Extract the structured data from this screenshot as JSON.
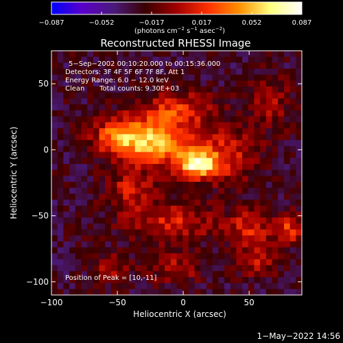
{
  "chart_data": {
    "type": "heatmap",
    "title": "Reconstructed RHESSI Image",
    "xlabel": "Heliocentric X (arcsec)",
    "ylabel": "Heliocentric Y (arcsec)",
    "xlim": [
      -100,
      90
    ],
    "ylim": [
      -110,
      75
    ],
    "xticks": [
      -100,
      -50,
      0,
      50
    ],
    "yticks": [
      -100,
      -50,
      0,
      50
    ],
    "colorbar": {
      "label_prefix": "(photons cm",
      "label_exp1": "−2",
      "label_mid1": " s",
      "label_exp2": "−1",
      "label_mid2": " asec",
      "label_exp3": "−2",
      "label_suffix": ")",
      "min": -0.087,
      "max": 0.087,
      "tick_labels": [
        "−0.087",
        "−0.052",
        "−0.017",
        "0.017",
        "0.052",
        "0.087"
      ],
      "colors": [
        "#0000ff",
        "#5b00c8",
        "#4a1a7a",
        "#3a0000",
        "#a00000",
        "#ff3000",
        "#ff9000",
        "#ffff80",
        "#ffffff"
      ]
    },
    "annotations": {
      "time_range": "5−Sep−2002 00:10:20.000 to 00:15:36.000",
      "detectors": "Detectors: 3F 4F 5F 6F 7F 8F, Att 1",
      "energy": "Energy Range: 6.0 − 12.0 keV",
      "method": "Clean",
      "counts": "Total counts: 9.30E+03",
      "peak": "Position of Peak = [10,-11]"
    },
    "peak_position": [
      10,
      -11
    ],
    "emission_sources": [
      {
        "x": 10,
        "y": -11,
        "amplitude": 0.087,
        "sigma_x": 10,
        "sigma_y": 7
      },
      {
        "x": -22,
        "y": 5,
        "amplitude": 0.075,
        "sigma_x": 18,
        "sigma_y": 12
      },
      {
        "x": -50,
        "y": 10,
        "amplitude": 0.055,
        "sigma_x": 14,
        "sigma_y": 10
      },
      {
        "x": -5,
        "y": 30,
        "amplitude": 0.045,
        "sigma_x": 20,
        "sigma_y": 10
      },
      {
        "x": 30,
        "y": -5,
        "amplitude": 0.045,
        "sigma_x": 18,
        "sigma_y": 14
      },
      {
        "x": -40,
        "y": -30,
        "amplitude": 0.035,
        "sigma_x": 14,
        "sigma_y": 10
      },
      {
        "x": -10,
        "y": -55,
        "amplitude": 0.04,
        "sigma_x": 25,
        "sigma_y": 10
      },
      {
        "x": 50,
        "y": -60,
        "amplitude": 0.04,
        "sigma_x": 12,
        "sigma_y": 10
      },
      {
        "x": 80,
        "y": -60,
        "amplitude": 0.045,
        "sigma_x": 8,
        "sigma_y": 8
      },
      {
        "x": -55,
        "y": -90,
        "amplitude": 0.03,
        "sigma_x": 10,
        "sigma_y": 7
      },
      {
        "x": -5,
        "y": -90,
        "amplitude": 0.03,
        "sigma_x": 14,
        "sigma_y": 8
      },
      {
        "x": 55,
        "y": -85,
        "amplitude": 0.03,
        "sigma_x": 12,
        "sigma_y": 8
      },
      {
        "x": 65,
        "y": 35,
        "amplitude": 0.028,
        "sigma_x": 12,
        "sigma_y": 14
      }
    ]
  },
  "footer": {
    "timestamp": "1−May−2022 14:56"
  }
}
